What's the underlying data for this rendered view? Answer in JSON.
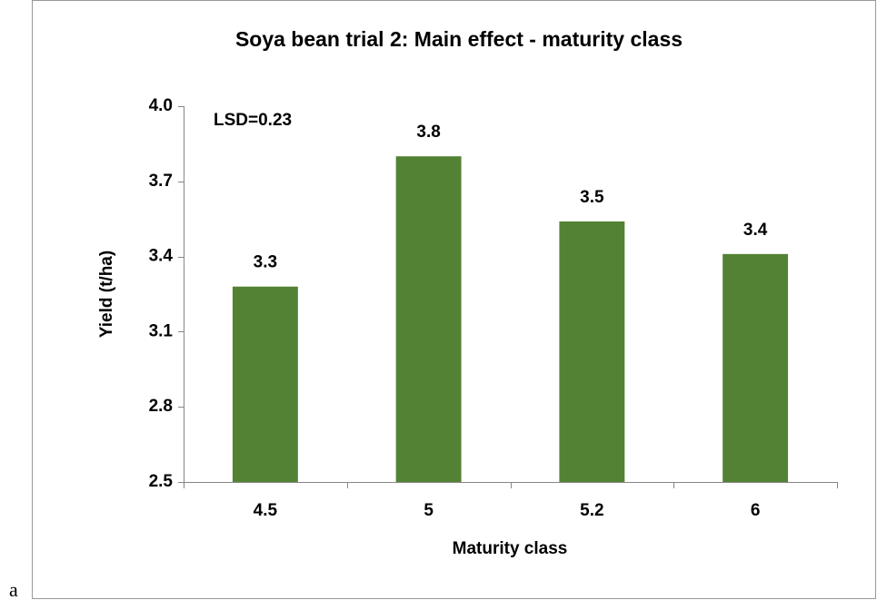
{
  "chart_data": {
    "type": "bar",
    "title": "Soya bean trial 2: Main effect - maturity class",
    "x_label": "Maturity class",
    "y_label": "Yield (t/ha)",
    "annotation": "LSD=0.23",
    "caption": "a",
    "categories": [
      "4.5",
      "5",
      "5.2",
      "6"
    ],
    "values": [
      3.28,
      3.8,
      3.54,
      3.41
    ],
    "value_labels": [
      "3.3",
      "3.8",
      "3.5",
      "3.4"
    ],
    "color": "#548235",
    "ylim": [
      2.5,
      4.0
    ],
    "yticks": [
      2.5,
      2.8,
      3.1,
      3.4,
      3.7,
      {
        "value": 4.0,
        "label": "4.0"
      }
    ],
    "grid": false
  }
}
